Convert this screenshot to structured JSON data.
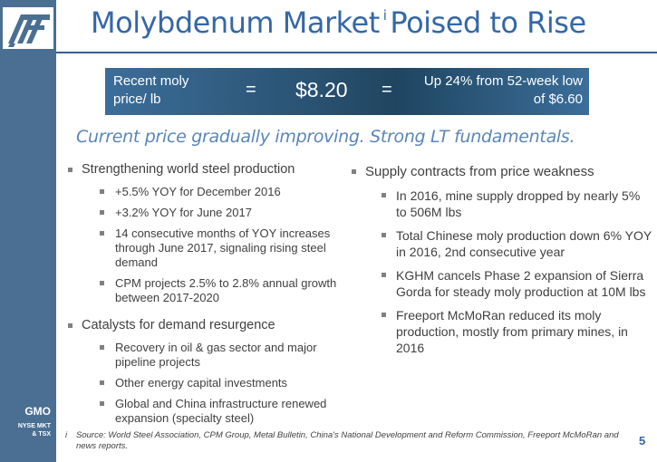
{
  "sidebar": {
    "ticker": "GMO",
    "exchanges": "NYSE MKT\n& TSX"
  },
  "title": {
    "text": "Molybdenum Market",
    "superscript": "i",
    "text_after": "Poised to Rise"
  },
  "price_bar": {
    "label": "Recent moly price/ lb",
    "equals": "=",
    "value": "$8.20",
    "change": "Up 24% from 52-week low of $6.60"
  },
  "tagline": "Current price gradually improving. Strong LT fundamentals.",
  "left_column": [
    {
      "text": "Strengthening world steel production",
      "items": [
        "+5.5% YOY for December 2016",
        "+3.2% YOY for June 2017",
        "14 consecutive months of YOY increases through June 2017, signaling rising steel demand",
        "CPM projects 2.5% to 2.8% annual growth between 2017-2020"
      ]
    },
    {
      "text": "Catalysts for demand resurgence",
      "items": [
        "Recovery in oil & gas sector and major pipeline projects",
        "Other energy capital investments",
        "Global and China infrastructure renewed expansion (specialty steel)"
      ]
    }
  ],
  "right_column": [
    {
      "text": "Supply contracts from price weakness",
      "items": [
        "In 2016, mine supply dropped by nearly 5% to 506M lbs",
        "Total Chinese moly production down 6% YOY in 2016, 2nd consecutive year",
        "KGHM cancels Phase 2 expansion of Sierra Gorda for steady moly production at 10M lbs",
        "Freeport McMoRan reduced its moly production, mostly from primary mines, in 2016"
      ]
    }
  ],
  "footnote": {
    "mark": "i",
    "text": "Source: World Steel Association, CPM Group, Metal Bulletin, China's National Development and Reform Commission, Freeport McMoRan and news reports."
  },
  "page_number": "5",
  "colors": {
    "sidebar": "#4a6f93",
    "title": "#3567a6",
    "tagline": "#5b86b8",
    "price_bar": "#29506f"
  }
}
